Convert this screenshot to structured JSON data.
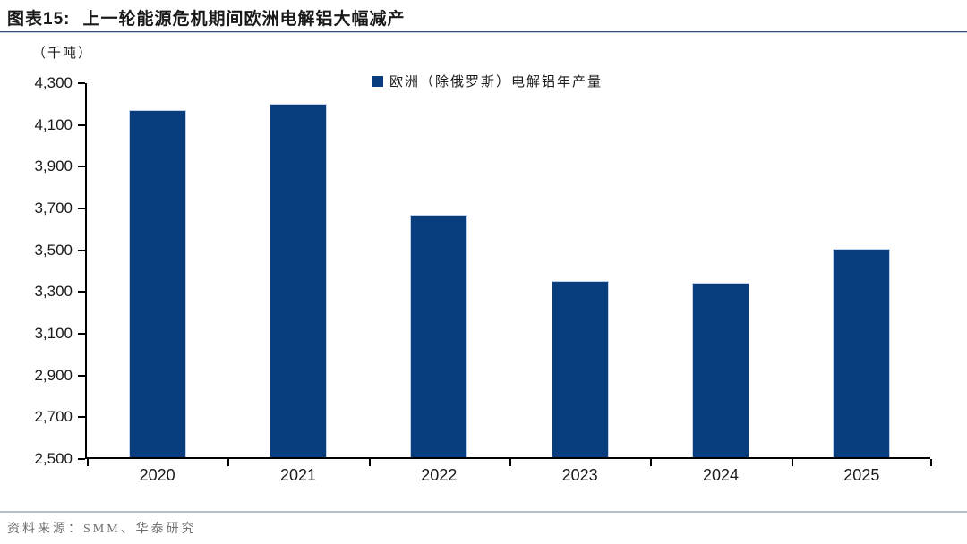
{
  "header": {
    "figure_label": "图表15:",
    "title": "上一轮能源危机期间欧洲电解铝大幅减产"
  },
  "chart_data": {
    "type": "bar",
    "title": "上一轮能源危机期间欧洲电解铝大幅减产",
    "unit_label": "（千吨）",
    "legend_entries": [
      "欧洲（除俄罗斯）电解铝年产量"
    ],
    "legend_position": "top-center",
    "categories": [
      "2020",
      "2021",
      "2022",
      "2023",
      "2024",
      "2025"
    ],
    "series": [
      {
        "name": "欧洲（除俄罗斯）电解铝年产量",
        "values": [
          4165,
          4193,
          3660,
          3345,
          3335,
          3500
        ]
      }
    ],
    "xlabel": "",
    "ylabel": "（千吨）",
    "ylim": [
      2500,
      4300
    ],
    "ystep": 200,
    "y_tick_labels": [
      "4,300",
      "4,100",
      "3,900",
      "3,700",
      "3,500",
      "3,300",
      "3,100",
      "2,900",
      "2,700",
      "2,500"
    ],
    "grid": false,
    "colors": {
      "bar": "#0a3d7e",
      "axis": "#000000",
      "title_rule": "#2e4d7b",
      "source_rule": "#b4bfca",
      "source_text": "#6f6f6f"
    }
  },
  "footer": {
    "source": "资料来源：SMM、华泰研究"
  }
}
